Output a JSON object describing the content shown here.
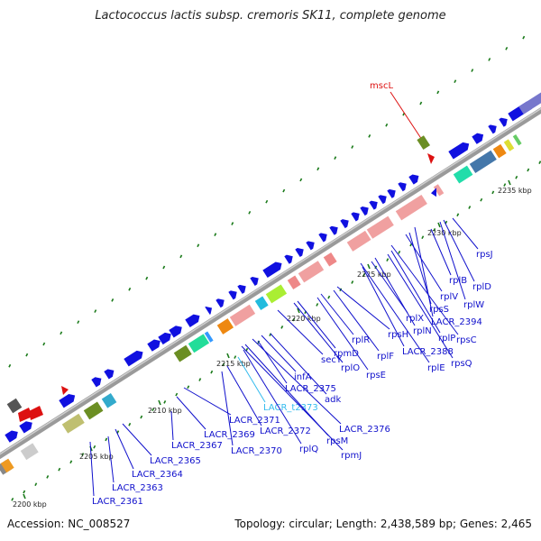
{
  "title": "Lactococcus lactis subsp. cremoris SK11, complete genome",
  "footer": {
    "accession": "Accession: NC_008527",
    "topology": "Topology: circular; Length: 2,438,589 bp; Genes: 2,465"
  },
  "colors": {
    "backbone": "#9a9a9a",
    "gene_blue": "#1010e0",
    "rRNA_pink": "#f0a0a0",
    "label_blue": "#1010cc",
    "tRNA_label": "#33bbee",
    "highlight_red": "#dd1111",
    "tick_green": "#1a7a1a"
  },
  "kbp_labels": [
    "2200 kbp",
    "2205 kbp",
    "2210 kbp",
    "2215 kbp",
    "2220 kbp",
    "2225 kbp",
    "2230 kbp",
    "2235 kbp"
  ],
  "highlight": {
    "name": "mscL"
  },
  "gene_labels": [
    "LACR_2361",
    "LACR_2363",
    "LACR_2364",
    "LACR_2365",
    "LACR_2367",
    "LACR_2369",
    "LACR_2370",
    "LACR_2371",
    "LACR_2372",
    "LACR_t2373",
    "LACR_2375",
    "infA",
    "rplQ",
    "rpsM",
    "LACR_2376",
    "rpmJ",
    "adk",
    "secY",
    "rplO",
    "rpmD",
    "rpsE",
    "rplR",
    "rplF",
    "rpsH",
    "LACR_2388",
    "rplE",
    "rplX",
    "rplN",
    "rpsQ",
    "rplP",
    "rpsC",
    "rplV",
    "rpsS",
    "LACR_2394",
    "rplB",
    "rplW",
    "rplD",
    "rpsJ"
  ]
}
